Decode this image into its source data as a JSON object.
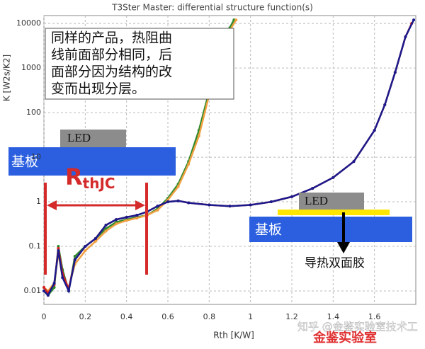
{
  "chart_data": {
    "type": "line",
    "title": "T3Ster Master: differential structure function(s)",
    "xlabel": "Rth  [K/W]",
    "ylabel": "K  [W2s/K2]",
    "ylog": true,
    "grid": true,
    "xlim": [
      0,
      1.8
    ],
    "ylim": [
      0.005,
      15000
    ],
    "xticks": [
      0,
      0.2,
      0.4,
      0.6,
      0.8,
      1,
      1.2,
      1.4,
      1.6
    ],
    "yticks": [
      0.01,
      0.1,
      1,
      10,
      100,
      1000,
      10000
    ],
    "series": [
      {
        "color": "#2e8b2e",
        "x": [
          0,
          0.02,
          0.05,
          0.07,
          0.09,
          0.12,
          0.15,
          0.2,
          0.25,
          0.3,
          0.35,
          0.4,
          0.45,
          0.5,
          0.55,
          0.6,
          0.65,
          0.7,
          0.75,
          0.8,
          0.85,
          0.9,
          0.92
        ],
        "values": [
          0.01,
          0.008,
          0.012,
          0.1,
          0.03,
          0.01,
          0.06,
          0.1,
          0.15,
          0.25,
          0.35,
          0.4,
          0.45,
          0.5,
          0.7,
          1.2,
          2.5,
          8,
          40,
          300,
          2000,
          8000,
          12000
        ]
      },
      {
        "color": "#f0a040",
        "x": [
          0,
          0.02,
          0.05,
          0.07,
          0.09,
          0.12,
          0.15,
          0.2,
          0.25,
          0.3,
          0.35,
          0.4,
          0.45,
          0.5,
          0.55,
          0.6,
          0.65,
          0.7,
          0.75,
          0.8,
          0.85,
          0.9,
          0.93
        ],
        "values": [
          0.012,
          0.01,
          0.015,
          0.07,
          0.02,
          0.012,
          0.04,
          0.08,
          0.13,
          0.22,
          0.32,
          0.38,
          0.43,
          0.5,
          0.65,
          1.1,
          2.2,
          7,
          30,
          250,
          1500,
          7000,
          12000
        ]
      },
      {
        "color": "#d42020",
        "x": [
          0,
          0.02,
          0.05,
          0.07,
          0.09,
          0.12,
          0.15,
          0.2,
          0.25,
          0.3,
          0.35,
          0.4,
          0.45,
          0.5,
          0.55,
          0.6,
          0.65,
          0.7,
          0.8,
          0.9,
          1.0,
          1.1,
          1.2,
          1.3,
          1.4,
          1.5,
          1.6,
          1.65,
          1.7,
          1.75,
          1.78
        ],
        "values": [
          0.012,
          0.009,
          0.014,
          0.09,
          0.025,
          0.011,
          0.05,
          0.1,
          0.15,
          0.3,
          0.4,
          0.45,
          0.5,
          0.6,
          0.8,
          1.0,
          1.05,
          0.95,
          0.85,
          0.8,
          0.85,
          1.0,
          1.3,
          2,
          3.5,
          8,
          40,
          150,
          800,
          5000,
          10000
        ]
      },
      {
        "color": "#1a1a8c",
        "x": [
          0,
          0.02,
          0.05,
          0.07,
          0.09,
          0.12,
          0.15,
          0.2,
          0.25,
          0.3,
          0.35,
          0.4,
          0.45,
          0.5,
          0.55,
          0.6,
          0.65,
          0.7,
          0.8,
          0.9,
          1.0,
          1.1,
          1.2,
          1.3,
          1.4,
          1.5,
          1.6,
          1.65,
          1.7,
          1.75,
          1.79
        ],
        "values": [
          0.01,
          0.008,
          0.015,
          0.08,
          0.02,
          0.01,
          0.05,
          0.1,
          0.15,
          0.3,
          0.4,
          0.45,
          0.5,
          0.6,
          0.8,
          1.0,
          1.05,
          0.95,
          0.85,
          0.8,
          0.85,
          1.0,
          1.3,
          2,
          3.5,
          8,
          40,
          150,
          800,
          5000,
          12000
        ]
      }
    ],
    "annotations": {
      "note_lines": [
        "同样的产品，热阻曲",
        "线前面部分相同，后",
        "面部分因为结构的改",
        "变而出现分层。"
      ],
      "led_left": "LED",
      "substrate_left": "基板",
      "rthjc_main": "R",
      "rthjc_sub": "thJC",
      "led_right": "LED",
      "substrate_right": "基板",
      "tape": "导热双面胶",
      "watermark": "知乎 @金鉴实验室技术工",
      "brand": "金鉴实验室"
    }
  }
}
